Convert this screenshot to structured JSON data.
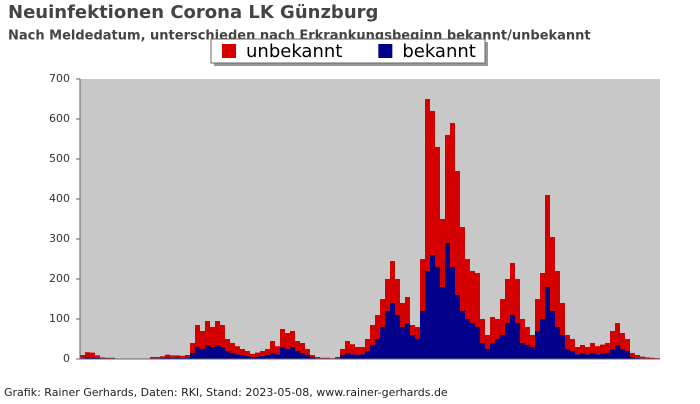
{
  "chart_data": {
    "type": "stacked-bar",
    "title": "Neuinfektionen Corona LK Günzburg",
    "subtitle": "Nach Meldedatum, unterschieden nach Erkrankungsbeginn bekannt/unbekannt",
    "footer": "Grafik: Rainer Gerhards, Daten: RKI, Stand: 2023-05-08, www.rainer-gerhards.de",
    "ylim": [
      0,
      700
    ],
    "yticks": [
      0,
      100,
      200,
      300,
      400,
      500,
      600,
      700
    ],
    "background": "#c8c8c8",
    "series": [
      {
        "name": "unbekannt",
        "color": "#d40000",
        "values": [
          8,
          12,
          12,
          6,
          2,
          2,
          1,
          1,
          1,
          1,
          1,
          1,
          1,
          1,
          4,
          3,
          4,
          7,
          6,
          5,
          5,
          6,
          25,
          55,
          45,
          60,
          50,
          60,
          55,
          30,
          25,
          20,
          15,
          12,
          8,
          10,
          12,
          15,
          30,
          20,
          45,
          40,
          40,
          25,
          25,
          15,
          5,
          3,
          1,
          2,
          1,
          3,
          15,
          30,
          25,
          20,
          18,
          30,
          50,
          60,
          70,
          80,
          105,
          90,
          60,
          65,
          25,
          30,
          130,
          430,
          360,
          300,
          170,
          270,
          360,
          310,
          210,
          150,
          130,
          135,
          60,
          35,
          65,
          50,
          90,
          110,
          130,
          110,
          60,
          45,
          30,
          80,
          115,
          230,
          185,
          140,
          80,
          35,
          30,
          18,
          20,
          18,
          25,
          20,
          22,
          25,
          45,
          55,
          40,
          30,
          10,
          7,
          4,
          3,
          2,
          1
        ]
      },
      {
        "name": "bekannt",
        "color": "#00008b",
        "values": [
          2,
          5,
          4,
          3,
          2,
          1,
          2,
          0,
          0,
          0,
          0,
          0,
          0,
          0,
          1,
          2,
          3,
          4,
          3,
          4,
          3,
          4,
          15,
          30,
          25,
          35,
          30,
          35,
          30,
          20,
          15,
          12,
          10,
          8,
          5,
          6,
          8,
          10,
          15,
          12,
          30,
          25,
          30,
          20,
          15,
          10,
          5,
          2,
          2,
          1,
          1,
          2,
          10,
          15,
          12,
          10,
          12,
          20,
          35,
          50,
          80,
          120,
          140,
          110,
          80,
          90,
          60,
          50,
          120,
          220,
          260,
          230,
          180,
          290,
          230,
          160,
          120,
          100,
          90,
          80,
          40,
          25,
          40,
          50,
          60,
          90,
          110,
          90,
          40,
          35,
          30,
          70,
          100,
          180,
          120,
          80,
          60,
          25,
          20,
          12,
          15,
          12,
          15,
          12,
          14,
          15,
          25,
          35,
          25,
          20,
          5,
          3,
          2,
          1,
          1,
          1
        ]
      }
    ]
  }
}
